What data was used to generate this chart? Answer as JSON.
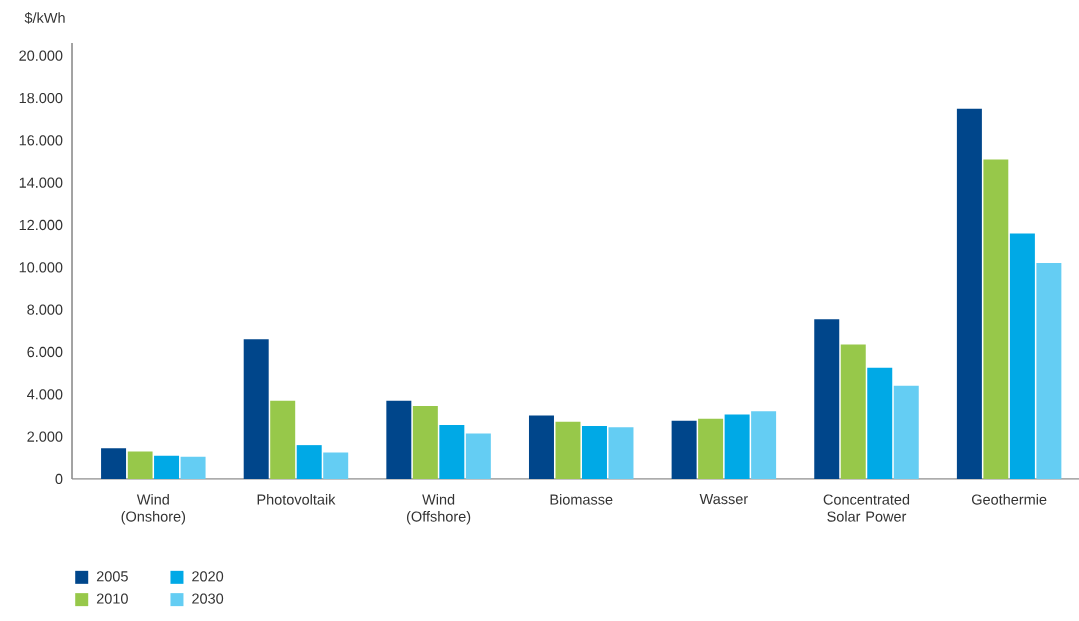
{
  "chart_data": {
    "type": "bar",
    "ylabel": "$/kWh",
    "categories": [
      "Wind (Onshore)",
      "Photovoltaik",
      "Wind (Offshore)",
      "Biomasse",
      "Wasser",
      "Concentrated Solar Power",
      "Geothermie"
    ],
    "series": [
      {
        "name": "2005",
        "color": "#00468b",
        "values": [
          1450,
          6600,
          3700,
          3000,
          2750,
          7550,
          17500
        ]
      },
      {
        "name": "2010",
        "color": "#97c84a",
        "values": [
          1300,
          3700,
          3450,
          2700,
          2850,
          6350,
          15100
        ]
      },
      {
        "name": "2020",
        "color": "#00a9e6",
        "values": [
          1100,
          1600,
          2550,
          2500,
          3050,
          5250,
          11600
        ]
      },
      {
        "name": "2030",
        "color": "#64cdf3",
        "values": [
          1050,
          1250,
          2150,
          2450,
          3200,
          4400,
          10200
        ]
      }
    ],
    "ylim": [
      0,
      20600
    ],
    "yticks": [
      0,
      {
        "value": 2000,
        "label": "2.000"
      },
      {
        "value": 4000,
        "label": "4.000"
      },
      {
        "value": 6000,
        "label": "6.000"
      },
      {
        "value": 8000,
        "label": "8.000"
      },
      {
        "value": 10000,
        "label": "10.000"
      },
      {
        "value": 12000,
        "label": "12.000"
      },
      {
        "value": 14000,
        "label": "14.000"
      },
      {
        "value": 16000,
        "label": "16.000"
      },
      {
        "value": 18000,
        "label": "18.000"
      },
      {
        "value": 20000,
        "label": "20.000"
      }
    ],
    "legend": "bottom left",
    "grid": false
  }
}
